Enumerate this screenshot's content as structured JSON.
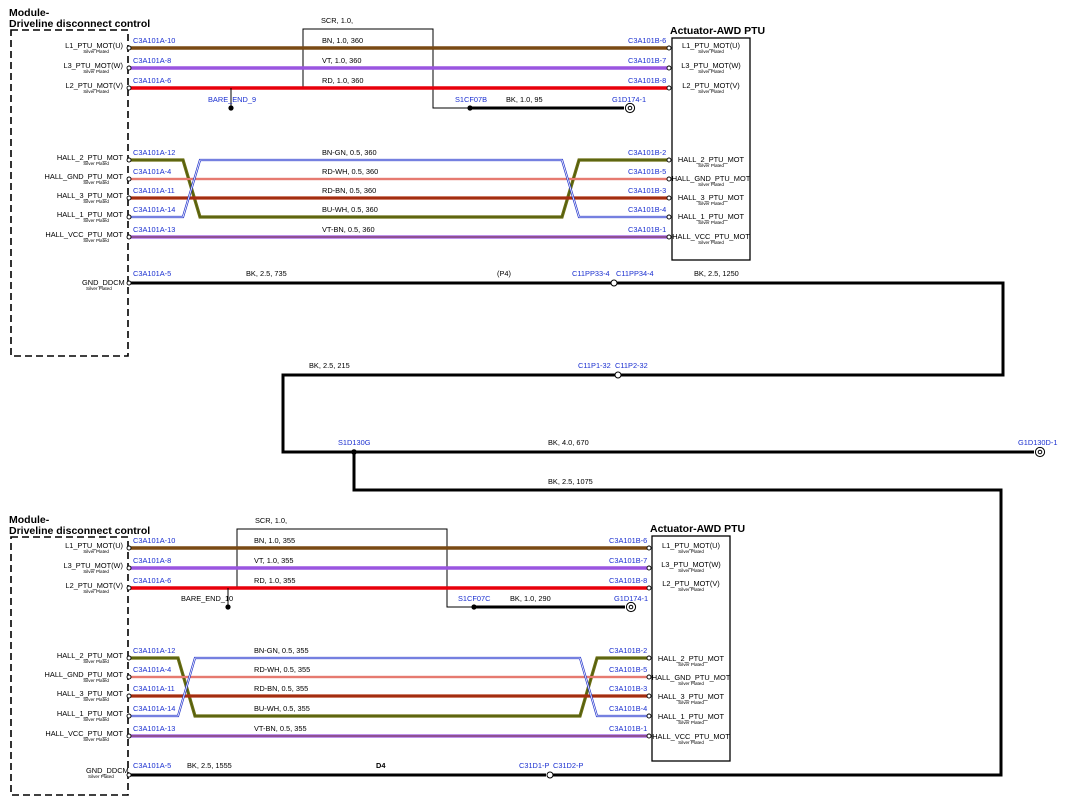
{
  "colors": {
    "BN": "#7a4a14",
    "VT": "#9a55e0",
    "RD": "#e8000b",
    "BK": "#000000",
    "BN-GN": "#6b6e12",
    "RD-WH": "#d62a1a",
    "RD-BN": "#b03010",
    "BU-WH": "#2233cc",
    "VT-BN": "#9a55e0",
    "connector_text": "#1a2fd0"
  },
  "top": {
    "module_title": [
      "Module-",
      "Driveline disconnect control"
    ],
    "actuator_title": "Actuator-AWD PTU",
    "shield_label": "SCR, 1.0,",
    "bare_end": "BARE_END_9",
    "splice": "S1CF07B",
    "splice_wire": "BK, 1.0, 95",
    "ground_conn": "G1D174-1",
    "gnd_pin": "GND_DDCM",
    "gnd_sub": "Silver Plated",
    "gnd_conn": "C3A101A-5",
    "gnd_wire": "BK, 2.5, 735",
    "gnd_note": "(P4)",
    "inline_conn": "C11PP33-4",
    "inline_conn2": "C11PP34-4",
    "gnd_wire2": "BK, 2.5, 1250",
    "pins_left": [
      {
        "name": "L1_PTU_MOT(U)",
        "sub": "Silver Plated"
      },
      {
        "name": "L3_PTU_MOT(W)",
        "sub": "Silver Plated"
      },
      {
        "name": "L2_PTU_MOT(V)",
        "sub": "Silver Plated"
      },
      {
        "name": "HALL_2_PTU_MOT",
        "sub": "Silver Plated"
      },
      {
        "name": "HALL_GND_PTU_MOT",
        "sub": "Silver Plated"
      },
      {
        "name": "HALL_3_PTU_MOT",
        "sub": "Silver Plated"
      },
      {
        "name": "HALL_1_PTU_MOT",
        "sub": "Silver Plated"
      },
      {
        "name": "HALL_VCC_PTU_MOT",
        "sub": "Silver Plated"
      }
    ],
    "pins_right": [
      {
        "name": "L1_PTU_MOT(U)",
        "sub": "Silver Plated"
      },
      {
        "name": "L3_PTU_MOT(W)",
        "sub": "Silver Plated"
      },
      {
        "name": "L2_PTU_MOT(V)",
        "sub": "Silver Plated"
      },
      {
        "name": "HALL_2_PTU_MOT",
        "sub": "Silver Plated"
      },
      {
        "name": "HALL_GND_PTU_MOT",
        "sub": "Silver Plated"
      },
      {
        "name": "HALL_3_PTU_MOT",
        "sub": "Silver Plated"
      },
      {
        "name": "HALL_1_PTU_MOT",
        "sub": "Silver Plated"
      },
      {
        "name": "HALL_VCC_PTU_MOT",
        "sub": "Silver Plated"
      }
    ],
    "wires": [
      {
        "left": "C3A101A-10",
        "right": "C3A101B-6",
        "label": "BN, 1.0, 360"
      },
      {
        "left": "C3A101A-8",
        "right": "C3A101B-7",
        "label": "VT, 1.0, 360"
      },
      {
        "left": "C3A101A-6",
        "right": "C3A101B-8",
        "label": "RD, 1.0, 360"
      },
      {
        "left": "C3A101A-12",
        "right": "C3A101B-2",
        "label": "BN-GN, 0.5, 360"
      },
      {
        "left": "C3A101A-4",
        "right": "C3A101B-5",
        "label": "RD-WH, 0.5, 360"
      },
      {
        "left": "C3A101A-11",
        "right": "C3A101B-3",
        "label": "RD-BN, 0.5, 360"
      },
      {
        "left": "C3A101A-14",
        "right": "C3A101B-4",
        "label": "BU-WH, 0.5, 360"
      },
      {
        "left": "C3A101A-13",
        "right": "C3A101B-1",
        "label": "VT-BN, 0.5, 360"
      }
    ]
  },
  "middle": {
    "wire_a": "BK, 2.5, 215",
    "inline_a": "C11P1-32",
    "inline_b": "C11P2-32",
    "splice": "S1D130G",
    "wire_b": "BK, 4.0, 670",
    "ground_conn": "G1D130D-1",
    "wire_c": "BK, 2.5, 1075"
  },
  "bottom": {
    "module_title": [
      "Module-",
      "Driveline disconnect control"
    ],
    "actuator_title": "Actuator-AWD PTU",
    "shield_label": "SCR, 1.0,",
    "bare_end": "BARE_END_10",
    "splice": "S1CF07C",
    "splice_wire": "BK, 1.0, 290",
    "ground_conn": "G1D174-1",
    "gnd_pin": "GND_DDCM",
    "gnd_sub": "Silver Plated",
    "gnd_conn": "C3A101A-5",
    "gnd_wire": "BK, 2.5, 1555",
    "gnd_note": "D4",
    "inline_conn": "C31D1-P",
    "inline_conn2": "C31D2-P",
    "pins_left": [
      {
        "name": "L1_PTU_MOT(U)",
        "sub": "Silver Plated"
      },
      {
        "name": "L3_PTU_MOT(W)",
        "sub": "Silver Plated"
      },
      {
        "name": "L2_PTU_MOT(V)",
        "sub": "Silver Plated"
      },
      {
        "name": "HALL_2_PTU_MOT",
        "sub": "Silver Plated"
      },
      {
        "name": "HALL_GND_PTU_MOT",
        "sub": "Silver Plated"
      },
      {
        "name": "HALL_3_PTU_MOT",
        "sub": "Silver Plated"
      },
      {
        "name": "HALL_1_PTU_MOT",
        "sub": "Silver Plated"
      },
      {
        "name": "HALL_VCC_PTU_MOT",
        "sub": "Silver Plated"
      }
    ],
    "pins_right": [
      {
        "name": "L1_PTU_MOT(U)",
        "sub": "Silver Plated"
      },
      {
        "name": "L3_PTU_MOT(W)",
        "sub": "Silver Plated"
      },
      {
        "name": "L2_PTU_MOT(V)",
        "sub": "Silver Plated"
      },
      {
        "name": "HALL_2_PTU_MOT",
        "sub": "Silver Plated"
      },
      {
        "name": "HALL_GND_PTU_MOT",
        "sub": "Silver Plated"
      },
      {
        "name": "HALL_3_PTU_MOT",
        "sub": "Silver Plated"
      },
      {
        "name": "HALL_1_PTU_MOT",
        "sub": "Silver Plated"
      },
      {
        "name": "HALL_VCC_PTU_MOT",
        "sub": "Silver Plated"
      }
    ],
    "wires": [
      {
        "left": "C3A101A-10",
        "right": "C3A101B-6",
        "label": "BN, 1.0, 355"
      },
      {
        "left": "C3A101A-8",
        "right": "C3A101B-7",
        "label": "VT, 1.0, 355"
      },
      {
        "left": "C3A101A-6",
        "right": "C3A101B-8",
        "label": "RD, 1.0, 355"
      },
      {
        "left": "C3A101A-12",
        "right": "C3A101B-2",
        "label": "BN-GN, 0.5, 355"
      },
      {
        "left": "C3A101A-4",
        "right": "C3A101B-5",
        "label": "RD-WH, 0.5, 355"
      },
      {
        "left": "C3A101A-11",
        "right": "C3A101B-3",
        "label": "RD-BN, 0.5, 355"
      },
      {
        "left": "C3A101A-14",
        "right": "C3A101B-4",
        "label": "BU-WH, 0.5, 355"
      },
      {
        "left": "C3A101A-13",
        "right": "C3A101B-1",
        "label": "VT-BN, 0.5, 355"
      }
    ]
  }
}
